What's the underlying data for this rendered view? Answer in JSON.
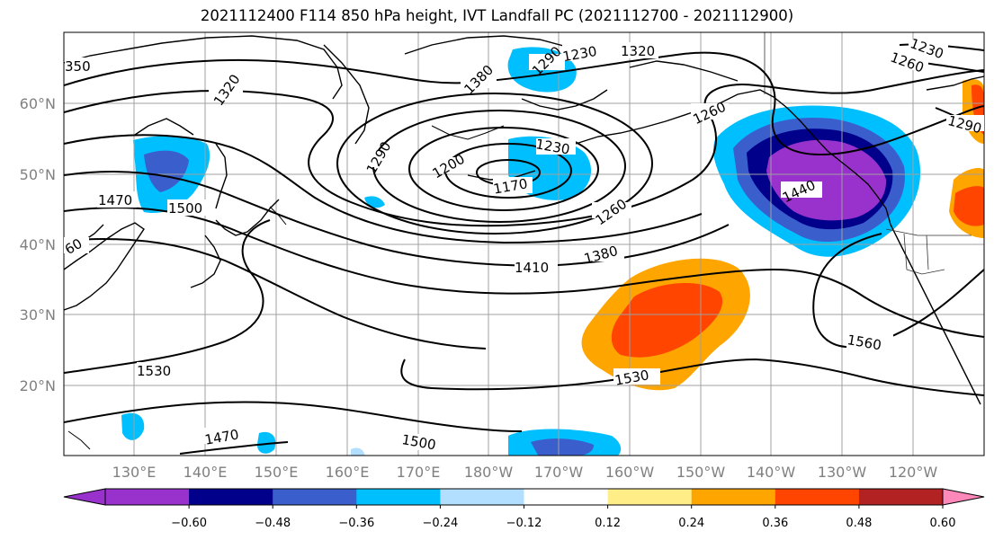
{
  "title": "2021112400 F114 850 hPa height, IVT Landfall PC (2021112700 - 2021112900)",
  "lat_labels": [
    "60°N",
    "50°N",
    "40°N",
    "30°N",
    "20°N"
  ],
  "lon_labels": [
    "130°E",
    "140°E",
    "150°E",
    "160°E",
    "170°E",
    "180°W",
    "170°W",
    "160°W",
    "150°W",
    "140°W",
    "130°W",
    "120°W"
  ],
  "colorbar": {
    "colors": [
      "#9932cc",
      "#00008b",
      "#3a5fcd",
      "#00bfff",
      "#b2dfff",
      "#ffffff",
      "#ffee88",
      "#ffa500",
      "#ff4500",
      "#b22222",
      "#ff88bb"
    ],
    "tick_labels": [
      "−0.60",
      "−0.48",
      "−0.36",
      "−0.24",
      "−0.12",
      "0.12",
      "0.24",
      "0.36",
      "0.48",
      "0.60"
    ]
  },
  "contour_labels": [
    "350",
    "1320",
    "1380",
    "1290",
    "1230",
    "1320",
    "1260",
    "1230",
    "1260",
    "1290",
    "1470",
    "1500",
    "1290",
    "1200",
    "1230",
    "1170",
    "1260",
    "1440",
    "60",
    "1410",
    "1380",
    "1530",
    "1560",
    "1530",
    "1470",
    "1500"
  ]
}
